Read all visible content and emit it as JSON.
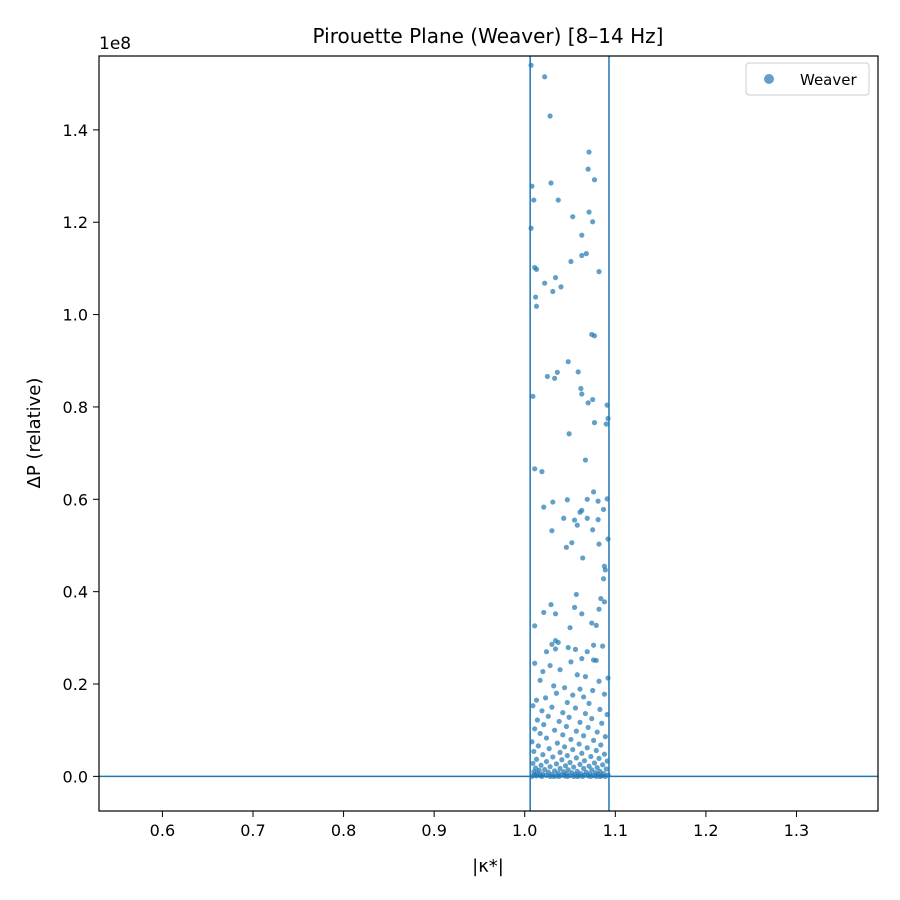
{
  "chart_data": {
    "type": "scatter",
    "title": "Pirouette Plane (Weaver)  [8–14 Hz]",
    "xlabel": "|κ*|",
    "ylabel": "ΔP (relative)",
    "y_offset_label": "1e8",
    "y_scale": 100000000,
    "xlim": [
      0.53,
      1.39
    ],
    "ylim": [
      -0.075,
      1.56
    ],
    "x_ticks": [
      0.6,
      0.7,
      0.8,
      0.9,
      1.0,
      1.1,
      1.2,
      1.3
    ],
    "x_tick_labels": [
      "0.6",
      "0.7",
      "0.8",
      "0.9",
      "1.0",
      "1.1",
      "1.2",
      "1.3"
    ],
    "y_ticks": [
      0.0,
      0.2,
      0.4,
      0.6,
      0.8,
      1.0,
      1.2,
      1.4
    ],
    "y_tick_labels": [
      "0.0",
      "0.2",
      "0.4",
      "0.6",
      "0.8",
      "1.0",
      "1.2",
      "1.4"
    ],
    "grid": false,
    "legend_position": "top-right",
    "reference_lines": {
      "vertical": [
        1.006,
        1.093
      ],
      "horizontal": [
        0.0
      ]
    },
    "series": [
      {
        "name": "Weaver",
        "color": "#1f77b4",
        "points": [
          [
            1.007,
            1.54
          ],
          [
            1.022,
            1.515
          ],
          [
            1.028,
            1.43
          ],
          [
            1.071,
            1.352
          ],
          [
            1.07,
            1.315
          ],
          [
            1.077,
            1.292
          ],
          [
            1.029,
            1.285
          ],
          [
            1.008,
            1.278
          ],
          [
            1.01,
            1.248
          ],
          [
            1.037,
            1.248
          ],
          [
            1.071,
            1.222
          ],
          [
            1.053,
            1.212
          ],
          [
            1.075,
            1.201
          ],
          [
            1.007,
            1.187
          ],
          [
            1.063,
            1.172
          ],
          [
            1.068,
            1.132
          ],
          [
            1.063,
            1.128
          ],
          [
            1.051,
            1.115
          ],
          [
            1.011,
            1.102
          ],
          [
            1.013,
            1.098
          ],
          [
            1.082,
            1.093
          ],
          [
            1.034,
            1.08
          ],
          [
            1.022,
            1.068
          ],
          [
            1.04,
            1.06
          ],
          [
            1.031,
            1.05
          ],
          [
            1.012,
            1.038
          ],
          [
            1.013,
            1.018
          ],
          [
            1.074,
            0.957
          ],
          [
            1.077,
            0.954
          ],
          [
            1.048,
            0.898
          ],
          [
            1.059,
            0.876
          ],
          [
            1.036,
            0.875
          ],
          [
            1.025,
            0.866
          ],
          [
            1.033,
            0.862
          ],
          [
            1.062,
            0.84
          ],
          [
            1.063,
            0.828
          ],
          [
            1.009,
            0.823
          ],
          [
            1.07,
            0.809
          ],
          [
            1.075,
            0.816
          ],
          [
            1.091,
            0.804
          ],
          [
            1.092,
            0.775
          ],
          [
            1.09,
            0.763
          ],
          [
            1.077,
            0.766
          ],
          [
            1.049,
            0.742
          ],
          [
            1.067,
            0.685
          ],
          [
            1.011,
            0.666
          ],
          [
            1.019,
            0.66
          ],
          [
            1.076,
            0.616
          ],
          [
            1.091,
            0.601
          ],
          [
            1.047,
            0.599
          ],
          [
            1.069,
            0.6
          ],
          [
            1.031,
            0.594
          ],
          [
            1.081,
            0.596
          ],
          [
            1.021,
            0.583
          ],
          [
            1.061,
            0.572
          ],
          [
            1.063,
            0.576
          ],
          [
            1.087,
            0.578
          ],
          [
            1.043,
            0.559
          ],
          [
            1.055,
            0.555
          ],
          [
            1.069,
            0.559
          ],
          [
            1.081,
            0.556
          ],
          [
            1.058,
            0.544
          ],
          [
            1.03,
            0.532
          ],
          [
            1.075,
            0.534
          ],
          [
            1.052,
            0.506
          ],
          [
            1.092,
            0.514
          ],
          [
            1.046,
            0.496
          ],
          [
            1.064,
            0.473
          ],
          [
            1.082,
            0.503
          ],
          [
            1.088,
            0.455
          ],
          [
            1.089,
            0.447
          ],
          [
            1.087,
            0.428
          ],
          [
            1.057,
            0.394
          ],
          [
            1.084,
            0.385
          ],
          [
            1.088,
            0.378
          ],
          [
            1.082,
            0.362
          ],
          [
            1.029,
            0.372
          ],
          [
            1.055,
            0.366
          ],
          [
            1.021,
            0.355
          ],
          [
            1.034,
            0.352
          ],
          [
            1.063,
            0.352
          ],
          [
            1.074,
            0.332
          ],
          [
            1.011,
            0.326
          ],
          [
            1.05,
            0.322
          ],
          [
            1.079,
            0.327
          ],
          [
            1.034,
            0.294
          ],
          [
            1.037,
            0.29
          ],
          [
            1.03,
            0.286
          ],
          [
            1.076,
            0.284
          ],
          [
            1.086,
            0.282
          ],
          [
            1.048,
            0.279
          ],
          [
            1.056,
            0.275
          ],
          [
            1.034,
            0.276
          ],
          [
            1.024,
            0.27
          ],
          [
            1.069,
            0.27
          ],
          [
            1.076,
            0.252
          ],
          [
            1.063,
            0.255
          ],
          [
            1.079,
            0.251
          ],
          [
            1.011,
            0.245
          ],
          [
            1.051,
            0.248
          ],
          [
            1.028,
            0.24
          ],
          [
            1.02,
            0.227
          ],
          [
            1.039,
            0.231
          ],
          [
            1.067,
            0.216
          ],
          [
            1.058,
            0.22
          ],
          [
            1.092,
            0.213
          ],
          [
            1.017,
            0.208
          ],
          [
            1.082,
            0.206
          ],
          [
            1.032,
            0.196
          ],
          [
            1.044,
            0.192
          ],
          [
            1.061,
            0.189
          ],
          [
            1.075,
            0.186
          ],
          [
            1.035,
            0.18
          ],
          [
            1.088,
            0.178
          ],
          [
            1.053,
            0.176
          ],
          [
            1.065,
            0.172
          ],
          [
            1.023,
            0.17
          ],
          [
            1.013,
            0.165
          ],
          [
            1.047,
            0.16
          ],
          [
            1.071,
            0.158
          ],
          [
            1.009,
            0.153
          ],
          [
            1.03,
            0.15
          ],
          [
            1.056,
            0.148
          ],
          [
            1.083,
            0.145
          ],
          [
            1.019,
            0.142
          ],
          [
            1.042,
            0.138
          ],
          [
            1.067,
            0.136
          ],
          [
            1.091,
            0.134
          ],
          [
            1.026,
            0.13
          ],
          [
            1.049,
            0.128
          ],
          [
            1.074,
            0.125
          ],
          [
            1.014,
            0.122
          ],
          [
            1.038,
            0.119
          ],
          [
            1.061,
            0.117
          ],
          [
            1.085,
            0.115
          ],
          [
            1.021,
            0.112
          ],
          [
            1.046,
            0.108
          ],
          [
            1.07,
            0.106
          ],
          [
            1.011,
            0.103
          ],
          [
            1.033,
            0.1
          ],
          [
            1.057,
            0.098
          ],
          [
            1.08,
            0.096
          ],
          [
            1.017,
            0.093
          ],
          [
            1.042,
            0.09
          ],
          [
            1.065,
            0.088
          ],
          [
            1.089,
            0.086
          ],
          [
            1.024,
            0.083
          ],
          [
            1.051,
            0.08
          ],
          [
            1.076,
            0.078
          ],
          [
            1.008,
            0.075
          ],
          [
            1.036,
            0.072
          ],
          [
            1.06,
            0.07
          ],
          [
            1.084,
            0.068
          ],
          [
            1.015,
            0.066
          ],
          [
            1.044,
            0.064
          ],
          [
            1.069,
            0.062
          ],
          [
            1.027,
            0.06
          ],
          [
            1.053,
            0.058
          ],
          [
            1.079,
            0.056
          ],
          [
            1.01,
            0.054
          ],
          [
            1.039,
            0.052
          ],
          [
            1.063,
            0.05
          ],
          [
            1.088,
            0.048
          ],
          [
            1.02,
            0.047
          ],
          [
            1.047,
            0.045
          ],
          [
            1.073,
            0.043
          ],
          [
            1.031,
            0.042
          ],
          [
            1.057,
            0.04
          ],
          [
            1.082,
            0.039
          ],
          [
            1.013,
            0.037
          ],
          [
            1.041,
            0.036
          ],
          [
            1.066,
            0.034
          ],
          [
            1.091,
            0.033
          ],
          [
            1.024,
            0.032
          ],
          [
            1.05,
            0.03
          ],
          [
            1.077,
            0.029
          ],
          [
            1.009,
            0.028
          ],
          [
            1.035,
            0.027
          ],
          [
            1.061,
            0.026
          ],
          [
            1.086,
            0.025
          ],
          [
            1.018,
            0.024
          ],
          [
            1.045,
            0.023
          ],
          [
            1.071,
            0.022
          ],
          [
            1.028,
            0.021
          ],
          [
            1.054,
            0.02
          ],
          [
            1.08,
            0.019
          ],
          [
            1.012,
            0.018
          ],
          [
            1.039,
            0.017
          ],
          [
            1.065,
            0.017
          ],
          [
            1.09,
            0.016
          ],
          [
            1.022,
            0.015
          ],
          [
            1.048,
            0.014
          ],
          [
            1.074,
            0.014
          ],
          [
            1.016,
            0.013
          ],
          [
            1.033,
            0.012
          ],
          [
            1.058,
            0.011
          ],
          [
            1.083,
            0.011
          ],
          [
            1.01,
            0.01
          ],
          [
            1.043,
            0.01
          ],
          [
            1.068,
            0.009
          ],
          [
            1.026,
            0.009
          ],
          [
            1.052,
            0.008
          ],
          [
            1.078,
            0.008
          ],
          [
            1.014,
            0.007
          ],
          [
            1.037,
            0.007
          ],
          [
            1.062,
            0.006
          ],
          [
            1.087,
            0.006
          ],
          [
            1.02,
            0.005
          ],
          [
            1.046,
            0.005
          ],
          [
            1.072,
            0.005
          ],
          [
            1.03,
            0.004
          ],
          [
            1.056,
            0.004
          ],
          [
            1.081,
            0.004
          ],
          [
            1.011,
            0.003
          ],
          [
            1.041,
            0.003
          ],
          [
            1.066,
            0.003
          ],
          [
            1.092,
            0.003
          ],
          [
            1.024,
            0.002
          ],
          [
            1.05,
            0.002
          ],
          [
            1.076,
            0.002
          ],
          [
            1.017,
            0.002
          ],
          [
            1.035,
            0.001
          ],
          [
            1.06,
            0.001
          ],
          [
            1.085,
            0.001
          ],
          [
            1.013,
            0.001
          ],
          [
            1.044,
            0.001
          ],
          [
            1.07,
            0.001
          ],
          [
            1.028,
            0.0
          ],
          [
            1.054,
            0.0
          ],
          [
            1.079,
            0.0
          ],
          [
            1.008,
            0.0
          ],
          [
            1.038,
            0.0
          ],
          [
            1.064,
            0.0
          ],
          [
            1.089,
            0.0
          ],
          [
            1.019,
            0.0
          ],
          [
            1.047,
            0.0
          ],
          [
            1.073,
            0.0
          ],
          [
            1.032,
            0.0
          ],
          [
            1.058,
            0.0
          ],
          [
            1.083,
            0.0
          ]
        ]
      }
    ]
  }
}
